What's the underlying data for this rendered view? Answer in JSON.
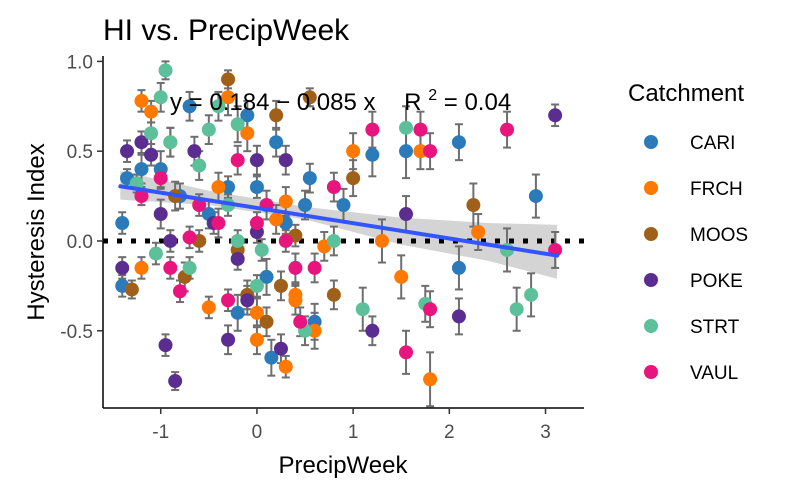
{
  "chart_data": {
    "type": "scatter",
    "title": "HI vs. PrecipWeek",
    "xlabel": "PrecipWeek",
    "ylabel": "Hysteresis Index",
    "xlim": [
      -1.6,
      3.4
    ],
    "ylim": [
      -0.93,
      1.03
    ],
    "x_ticks": [
      -1,
      0,
      1,
      2,
      3
    ],
    "x_tick_labels": [
      "-1",
      "0",
      "1",
      "2",
      "3"
    ],
    "y_ticks": [
      -0.5,
      0.0,
      0.5,
      1.0
    ],
    "y_tick_labels": [
      "-0.5",
      "0.0",
      "0.5",
      "1.0"
    ],
    "grid": false,
    "legend_title": "Catchment",
    "legend_position": "right",
    "annotation": {
      "pre": "y = 0.184 − 0.085 x",
      "r2_label": "R",
      "r2_exp": "2",
      "r2_rest": " = 0.04"
    },
    "regression": {
      "intercept": 0.184,
      "slope": -0.085,
      "x_range": [
        -1.42,
        3.12
      ],
      "color": "#3355ff"
    },
    "ci_band": [
      [
        -1.42,
        0.23,
        0.39
      ],
      [
        -0.5,
        0.2,
        0.28
      ],
      [
        0.5,
        0.12,
        0.19
      ],
      [
        1.5,
        -0.02,
        0.13
      ],
      [
        2.4,
        -0.11,
        0.1
      ],
      [
        3.12,
        -0.21,
        0.09
      ]
    ],
    "zero_line": 0,
    "series": [
      {
        "name": "CARI",
        "color": "#2b7bba",
        "points": [
          [
            -1.35,
            0.35,
            0.05
          ],
          [
            -1.4,
            0.1,
            0.06
          ],
          [
            -1.4,
            -0.25,
            0.06
          ],
          [
            -1.2,
            0.4,
            0.08
          ],
          [
            -1.0,
            0.4,
            0.1
          ],
          [
            -0.8,
            0.25,
            0.07
          ],
          [
            -0.5,
            0.15,
            0.08
          ],
          [
            -0.3,
            0.3,
            0.06
          ],
          [
            -0.1,
            0.7,
            0.08
          ],
          [
            0.0,
            0.3,
            0.06
          ],
          [
            0.2,
            0.55,
            0.08
          ],
          [
            0.1,
            -0.2,
            0.1
          ],
          [
            -0.2,
            -0.4,
            0.1
          ],
          [
            0.5,
            0.2,
            0.08
          ],
          [
            0.6,
            -0.45,
            0.1
          ],
          [
            0.55,
            0.35,
            0.08
          ],
          [
            0.9,
            0.2,
            0.09
          ],
          [
            1.2,
            0.48,
            0.12
          ],
          [
            1.55,
            0.5,
            0.15
          ],
          [
            0.15,
            -0.65,
            0.1
          ],
          [
            2.1,
            0.55,
            0.1
          ],
          [
            2.1,
            -0.15,
            0.12
          ],
          [
            2.9,
            0.25,
            0.12
          ],
          [
            0.3,
            0.1,
            0.06
          ],
          [
            -0.7,
            0.75,
            0.08
          ]
        ]
      },
      {
        "name": "FRCH",
        "color": "#ff7800",
        "points": [
          [
            -1.2,
            0.78,
            0.06
          ],
          [
            -1.2,
            -0.15,
            0.06
          ],
          [
            -0.5,
            -0.37,
            0.06
          ],
          [
            -0.1,
            0.6,
            0.1
          ],
          [
            0.2,
            0.12,
            0.08
          ],
          [
            0.0,
            -0.55,
            0.08
          ],
          [
            0.3,
            -0.7,
            0.06
          ],
          [
            0.4,
            -0.3,
            0.06
          ],
          [
            0.7,
            -0.03,
            0.08
          ],
          [
            0.6,
            -0.5,
            0.1
          ],
          [
            1.0,
            0.5,
            0.1
          ],
          [
            1.3,
            0.0,
            0.12
          ],
          [
            1.5,
            -0.2,
            0.12
          ],
          [
            1.8,
            -0.77,
            0.15
          ],
          [
            1.7,
            0.5,
            0.1
          ],
          [
            -0.3,
            0.8,
            0.1
          ],
          [
            -0.4,
            0.3,
            0.08
          ],
          [
            0.3,
            0.22,
            0.08
          ],
          [
            0.4,
            -0.33,
            0.08
          ],
          [
            -1.1,
            0.72,
            0.06
          ],
          [
            0.0,
            -0.4,
            0.08
          ],
          [
            -0.9,
            0.55,
            0.08
          ],
          [
            2.3,
            0.05,
            0.1
          ]
        ]
      },
      {
        "name": "MOOS",
        "color": "#a0601a",
        "points": [
          [
            -1.3,
            -0.27,
            0.05
          ],
          [
            -0.85,
            0.25,
            0.08
          ],
          [
            -0.3,
            0.9,
            0.05
          ],
          [
            -0.1,
            -0.3,
            0.08
          ],
          [
            0.2,
            0.7,
            0.08
          ],
          [
            0.55,
            0.8,
            0.05
          ],
          [
            0.8,
            -0.3,
            0.08
          ],
          [
            1.0,
            0.35,
            0.1
          ],
          [
            2.25,
            0.2,
            0.12
          ],
          [
            0.1,
            -0.45,
            0.08
          ],
          [
            -0.2,
            -0.05,
            0.06
          ],
          [
            0.4,
            0.03,
            0.06
          ],
          [
            -0.6,
            0.0,
            0.06
          ],
          [
            -0.75,
            -0.2,
            0.08
          ],
          [
            0.25,
            -0.25,
            0.08
          ]
        ]
      },
      {
        "name": "POKE",
        "color": "#5c2d91",
        "points": [
          [
            -1.35,
            0.5,
            0.06
          ],
          [
            -1.1,
            0.48,
            0.06
          ],
          [
            -1.0,
            0.15,
            0.08
          ],
          [
            -0.95,
            -0.58,
            0.06
          ],
          [
            -0.9,
            0.0,
            0.06
          ],
          [
            -0.85,
            -0.78,
            0.05
          ],
          [
            -0.65,
            0.5,
            0.08
          ],
          [
            -0.3,
            -0.55,
            0.08
          ],
          [
            -0.2,
            -0.1,
            0.06
          ],
          [
            0.0,
            0.45,
            0.08
          ],
          [
            0.3,
            0.45,
            0.08
          ],
          [
            0.25,
            -0.6,
            0.08
          ],
          [
            -1.4,
            -0.15,
            0.06
          ],
          [
            1.2,
            -0.5,
            0.08
          ],
          [
            1.55,
            0.15,
            0.1
          ],
          [
            2.1,
            -0.42,
            0.1
          ],
          [
            3.1,
            0.7,
            0.06
          ],
          [
            -0.1,
            -0.33,
            0.08
          ],
          [
            -1.2,
            0.55,
            0.06
          ],
          [
            0.0,
            0.05,
            0.06
          ],
          [
            -0.45,
            0.1,
            0.06
          ]
        ]
      },
      {
        "name": "STRT",
        "color": "#5cc09a",
        "points": [
          [
            -1.25,
            0.32,
            0.05
          ],
          [
            -1.1,
            0.6,
            0.06
          ],
          [
            -1.0,
            0.8,
            0.08
          ],
          [
            -0.9,
            0.55,
            0.08
          ],
          [
            -0.6,
            0.42,
            0.08
          ],
          [
            -0.5,
            0.62,
            0.08
          ],
          [
            -0.4,
            0.75,
            0.08
          ],
          [
            -0.2,
            0.65,
            0.1
          ],
          [
            -0.7,
            -0.15,
            0.06
          ],
          [
            -0.3,
            0.2,
            0.06
          ],
          [
            0.0,
            -0.25,
            0.06
          ],
          [
            0.5,
            -0.5,
            0.08
          ],
          [
            0.8,
            0.0,
            0.08
          ],
          [
            1.1,
            -0.38,
            0.12
          ],
          [
            1.55,
            0.63,
            0.12
          ],
          [
            1.75,
            -0.35,
            0.1
          ],
          [
            2.6,
            -0.05,
            0.12
          ],
          [
            2.85,
            -0.3,
            0.12
          ],
          [
            0.05,
            -0.05,
            0.06
          ],
          [
            -1.05,
            -0.07,
            0.06
          ],
          [
            -0.95,
            0.95,
            0.05
          ],
          [
            -0.2,
            0.0,
            0.06
          ],
          [
            2.7,
            -0.38,
            0.12
          ]
        ]
      },
      {
        "name": "VAUL",
        "color": "#e7157d",
        "points": [
          [
            -1.2,
            0.25,
            0.05
          ],
          [
            -1.0,
            0.35,
            0.06
          ],
          [
            -0.9,
            -0.15,
            0.06
          ],
          [
            -0.8,
            -0.28,
            0.06
          ],
          [
            -0.6,
            0.2,
            0.06
          ],
          [
            -0.4,
            0.1,
            0.08
          ],
          [
            -0.2,
            0.45,
            0.08
          ],
          [
            0.1,
            0.2,
            0.08
          ],
          [
            0.3,
            0.0,
            0.06
          ],
          [
            0.4,
            -0.15,
            0.08
          ],
          [
            0.6,
            -0.15,
            0.08
          ],
          [
            0.8,
            0.3,
            0.08
          ],
          [
            1.2,
            0.62,
            0.1
          ],
          [
            1.55,
            -0.62,
            0.12
          ],
          [
            1.7,
            0.62,
            0.1
          ],
          [
            1.8,
            0.5,
            0.1
          ],
          [
            2.6,
            0.62,
            0.1
          ],
          [
            3.1,
            -0.05,
            0.1
          ],
          [
            -0.3,
            -0.33,
            0.06
          ],
          [
            1.8,
            -0.38,
            0.1
          ],
          [
            0.0,
            0.1,
            0.06
          ],
          [
            0.45,
            -0.45,
            0.08
          ],
          [
            -0.7,
            0.02,
            0.06
          ]
        ]
      }
    ]
  }
}
